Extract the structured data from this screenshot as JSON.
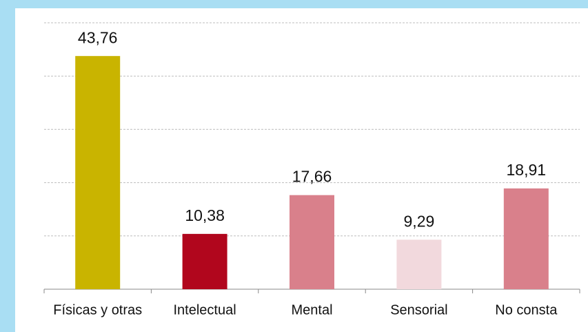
{
  "chart_data": {
    "type": "bar",
    "categories": [
      "Físicas y otras",
      "Intelectual",
      "Mental",
      "Sensorial",
      "No consta"
    ],
    "values": [
      43.76,
      10.38,
      17.66,
      9.29,
      18.91
    ],
    "value_labels": [
      "43,76",
      "10,38",
      "17,66",
      "9,29",
      "18,91"
    ],
    "colors": [
      "#c9b400",
      "#b1061d",
      "#d9808b",
      "#f2d9dd",
      "#d9808b"
    ],
    "ylim": [
      0,
      50
    ],
    "yticks": [
      0,
      10,
      20,
      30,
      40,
      50
    ],
    "grid": true
  }
}
